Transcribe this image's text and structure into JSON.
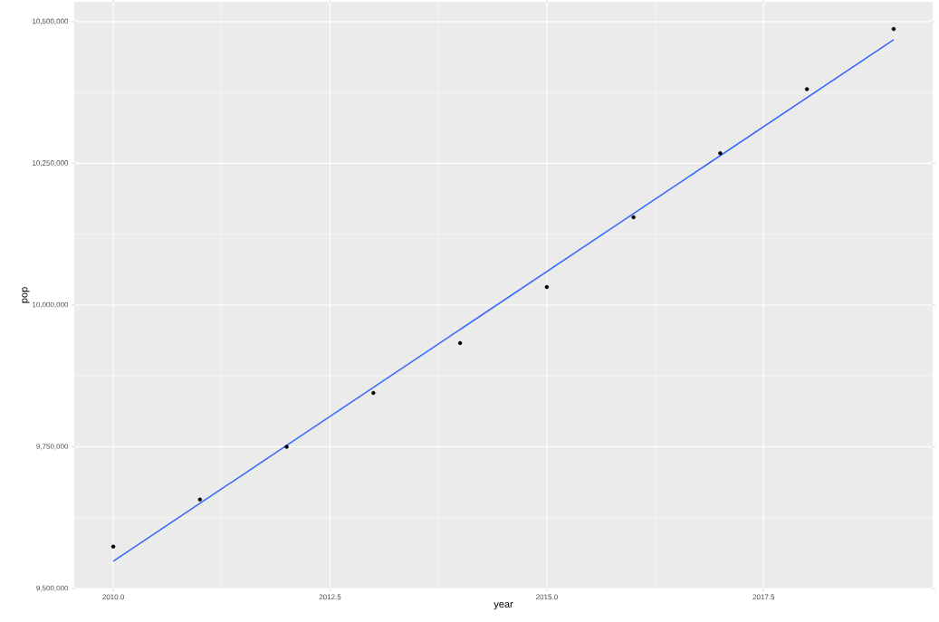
{
  "chart_data": {
    "type": "scatter",
    "xlabel": "year",
    "ylabel": "pop",
    "grid": true,
    "x": [
      2010,
      2011,
      2012,
      2013,
      2014,
      2015,
      2016,
      2017,
      2018,
      2019
    ],
    "series": [
      {
        "color": "#000000",
        "marker": "circle",
        "values": [
          9574000,
          9657000,
          9750000,
          9845000,
          9933000,
          10032000,
          10155000,
          10268000,
          10381000,
          10487000
        ]
      },
      {
        "type": "line",
        "color": "#3366ff",
        "marker": "none",
        "x": [
          2010,
          2019
        ],
        "values": [
          9548000,
          10468000
        ]
      }
    ],
    "xlim": [
      2009.55,
      2019.45
    ],
    "ylim": [
      9500000,
      10535000
    ],
    "xticks": [
      {
        "value": 2010,
        "label": "2010.0"
      },
      {
        "value": 2012.5,
        "label": "2012.5"
      },
      {
        "value": 2015,
        "label": "2015.0"
      },
      {
        "value": 2017.5,
        "label": "2017.5"
      }
    ],
    "yticks": [
      {
        "value": 9500000,
        "label": "9,500,000"
      },
      {
        "value": 9750000,
        "label": "9,750,000"
      },
      {
        "value": 10000000,
        "label": "10,000,000"
      },
      {
        "value": 10250000,
        "label": "10,250,000"
      },
      {
        "value": 10500000,
        "label": "10,500,000"
      }
    ]
  }
}
